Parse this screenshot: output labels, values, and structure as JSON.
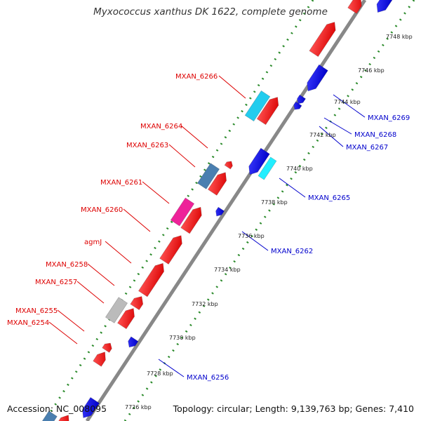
{
  "title": "Myxococcus xanthus DK 1622, complete genome",
  "accession": "Accession: NC_008095",
  "summary": "Topology: circular; Length: 9,139,763 bp; Genes: 7,410",
  "colors": {
    "forward_label": "#dd0000",
    "reverse_label": "#0000cc",
    "backbone": "#888888",
    "ticks": "#2a8a2a"
  },
  "tick_labels": [
    "7748 kbp",
    "7746 kbp",
    "7744 kbp",
    "7742 kbp",
    "7740 kbp",
    "7738 kbp",
    "7736 kbp",
    "7734 kbp",
    "7732 kbp",
    "7730 kbp",
    "7728 kbp",
    "7726 kbp"
  ],
  "forward_gene_labels": [
    "MXAN_6266",
    "MXAN_6264",
    "MXAN_6263",
    "MXAN_6261",
    "MXAN_6260",
    "agmJ",
    "MXAN_6258",
    "MXAN_6257",
    "MXAN_6255",
    "MXAN_6254"
  ],
  "reverse_gene_labels": [
    "MXAN_6269",
    "MXAN_6268",
    "MXAN_6267",
    "MXAN_6265",
    "MXAN_6262",
    "MXAN_6256"
  ]
}
